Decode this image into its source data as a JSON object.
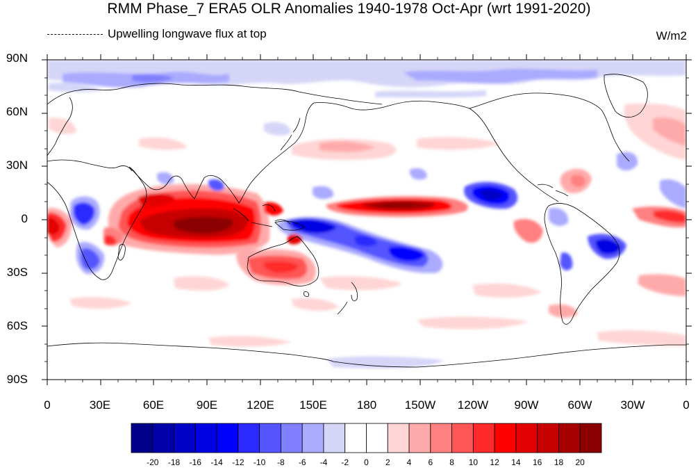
{
  "title": "RMM Phase_7 ERA5 OLR Anomalies 1940-1978 Oct-Apr (wrt 1991-2020)",
  "subtitle": "Upwelling longwave flux at top",
  "units": "W/m2",
  "lat_ticks": [
    "90N",
    "60N",
    "30N",
    "0",
    "30S",
    "60S",
    "90S"
  ],
  "lon_ticks": [
    "0",
    "30E",
    "60E",
    "90E",
    "120E",
    "150E",
    "180",
    "150W",
    "120W",
    "90W",
    "60W",
    "30W",
    "0"
  ],
  "colorbar": {
    "labels": [
      "-20",
      "-18",
      "-16",
      "-14",
      "-12",
      "-10",
      "-8",
      "-6",
      "-4",
      "-2",
      "0",
      "2",
      "4",
      "6",
      "8",
      "10",
      "12",
      "14",
      "16",
      "18",
      "20"
    ],
    "colors": [
      "#00008b",
      "#0000a8",
      "#0000c6",
      "#0000e3",
      "#0000ff",
      "#2a2aff",
      "#5555ff",
      "#8080ff",
      "#aaaaff",
      "#d5d5f8",
      "#ffffff",
      "#ffffff",
      "#ffd5d5",
      "#ffaaaa",
      "#ff8080",
      "#ff5555",
      "#ff2a2a",
      "#ff0000",
      "#e30000",
      "#c60000",
      "#a80000",
      "#8b0000"
    ]
  }
}
